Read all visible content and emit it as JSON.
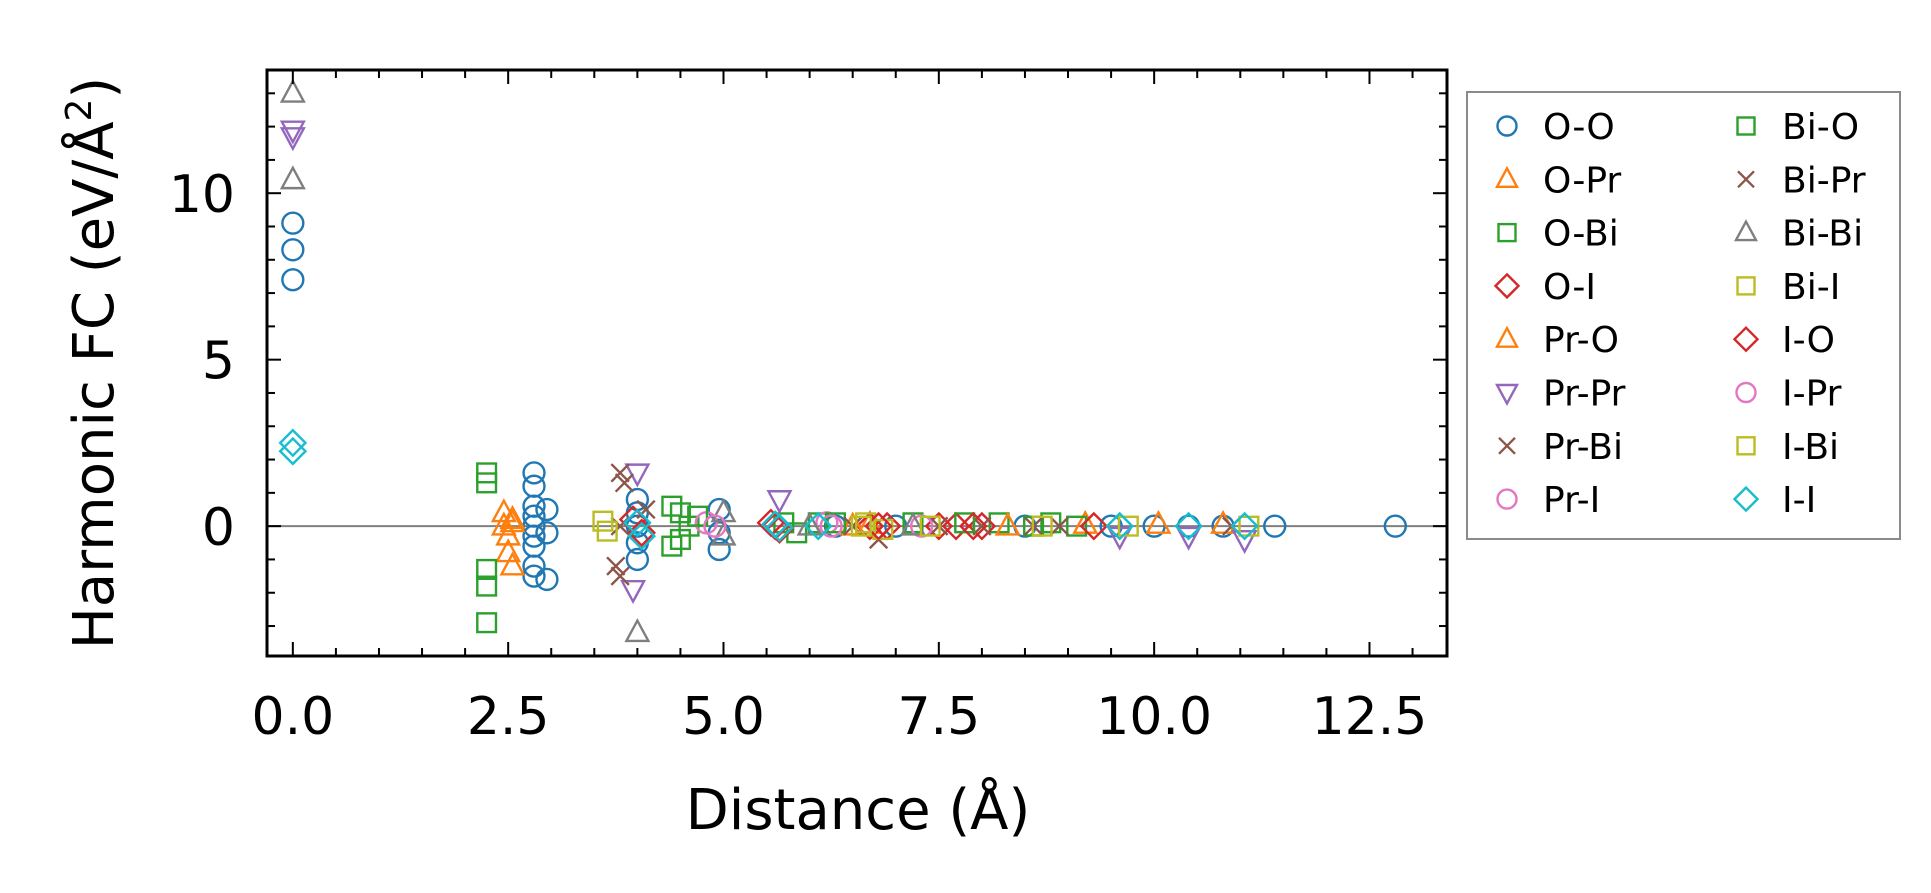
{
  "chart_data": {
    "type": "scatter",
    "title": "",
    "xlabel": "Distance (Å)",
    "ylabel": "Harmonic FC (eV/Å²)",
    "ylabel_main": "Harmonic FC (eV/Å",
    "ylabel_sup": "2",
    "ylabel_end": ")",
    "xlim": [
      -0.3,
      13.4
    ],
    "ylim": [
      -3.9,
      13.7
    ],
    "xticks": [
      0.0,
      2.5,
      5.0,
      7.5,
      10.0,
      12.5
    ],
    "xtick_labels": [
      "0.0",
      "2.5",
      "5.0",
      "7.5",
      "10.0",
      "12.5"
    ],
    "yticks": [
      0,
      5,
      10
    ],
    "ytick_labels": [
      "0",
      "5",
      "10"
    ],
    "reference_line_y": 0,
    "legend_position": "outside-right",
    "series": [
      {
        "name": "O-O",
        "marker": "circle",
        "color": "#1f77b4",
        "x": [
          0,
          0,
          0,
          2.8,
          2.8,
          2.8,
          2.8,
          2.8,
          2.8,
          2.8,
          2.8,
          2.8,
          2.95,
          2.95,
          2.95,
          4.0,
          4.0,
          4.0,
          4.0,
          4.0,
          4.95,
          4.95,
          4.95,
          6.3,
          7.0,
          8.5,
          9.5,
          10.0,
          10.4,
          10.8,
          11.4,
          12.8
        ],
        "y": [
          9.1,
          8.3,
          7.4,
          1.6,
          1.2,
          0.6,
          0.3,
          0.0,
          -0.3,
          -0.6,
          -1.2,
          -1.5,
          0.5,
          -0.2,
          -1.6,
          0.8,
          0.4,
          0.0,
          -0.5,
          -1.0,
          0.5,
          -0.2,
          -0.7,
          0.0,
          0.0,
          0.0,
          0.0,
          0.0,
          0.0,
          0.0,
          0.0,
          0.0
        ]
      },
      {
        "name": "O-Pr",
        "marker": "triangle-up",
        "color": "#ff7f0e",
        "x": [
          2.45,
          2.45,
          2.5,
          2.5,
          2.55,
          2.55,
          6.7,
          9.2,
          10.05,
          10.8
        ],
        "y": [
          0.4,
          0.0,
          -0.3,
          -0.8,
          -1.2,
          0.2,
          0.05,
          0.05,
          0.05,
          0.05
        ]
      },
      {
        "name": "O-Bi",
        "marker": "square",
        "color": "#2ca02c",
        "x": [
          2.25,
          2.25,
          2.25,
          2.25,
          2.25,
          4.4,
          4.5,
          4.6,
          4.5,
          4.4,
          5.7,
          5.85,
          6.1,
          7.2,
          8.2,
          8.8,
          9.1
        ],
        "y": [
          1.6,
          1.3,
          -1.3,
          -1.8,
          -2.9,
          0.6,
          0.4,
          0.0,
          -0.4,
          -0.6,
          0.1,
          -0.2,
          0.1,
          0.1,
          0.1,
          0.1,
          0.0
        ]
      },
      {
        "name": "O-I",
        "marker": "diamond",
        "color": "#d62728",
        "x": [
          3.95,
          4.05,
          5.55,
          5.65,
          6.7,
          6.9,
          7.5,
          7.7,
          8.0
        ],
        "y": [
          0.2,
          -0.2,
          0.1,
          -0.1,
          0.0,
          0.0,
          0.0,
          0.0,
          0.0
        ]
      },
      {
        "name": "Pr-O",
        "marker": "triangle-up",
        "color": "#ff7f0e",
        "x": [
          2.55,
          6.5,
          8.3
        ],
        "y": [
          0.1,
          0.0,
          0.0
        ]
      },
      {
        "name": "Pr-Pr",
        "marker": "triangle-down",
        "color": "#9467bd",
        "x": [
          0,
          0,
          4.0,
          3.95,
          5.65,
          9.6,
          10.4,
          11.05
        ],
        "y": [
          11.9,
          11.7,
          1.6,
          -1.9,
          0.8,
          -0.3,
          -0.3,
          -0.4
        ]
      },
      {
        "name": "Pr-Bi",
        "marker": "x",
        "color": "#8c564b",
        "x": [
          3.8,
          3.85,
          3.8,
          3.75,
          3.8,
          6.8,
          7.5,
          8.0,
          8.9,
          10.9
        ],
        "y": [
          1.6,
          1.3,
          0.0,
          -1.2,
          -1.5,
          -0.4,
          0.0,
          0.0,
          0.0,
          0.0
        ]
      },
      {
        "name": "Pr-I",
        "marker": "circle",
        "color": "#e377c2",
        "x": [
          4.8,
          6.2,
          7.3
        ],
        "y": [
          0.1,
          0.1,
          0.0
        ]
      },
      {
        "name": "Bi-O",
        "marker": "square",
        "color": "#2ca02c",
        "x": [
          4.7,
          6.3,
          7.8,
          8.6
        ],
        "y": [
          0.3,
          0.1,
          0.1,
          0.0
        ]
      },
      {
        "name": "Bi-Pr",
        "marker": "x",
        "color": "#8c564b",
        "x": [
          4.1,
          6.5,
          8.6
        ],
        "y": [
          0.5,
          0.0,
          0.0
        ]
      },
      {
        "name": "Bi-Bi",
        "marker": "triangle-up",
        "color": "#7f7f7f",
        "x": [
          0,
          0,
          4.0,
          5.0,
          5.0,
          6.0,
          7.2
        ],
        "y": [
          13.0,
          10.4,
          -3.2,
          0.4,
          -0.3,
          0.0,
          0.0
        ]
      },
      {
        "name": "Bi-I",
        "marker": "square",
        "color": "#bcbd22",
        "x": [
          3.6,
          3.65,
          6.65,
          6.85,
          8.7,
          9.7,
          11.1
        ],
        "y": [
          0.15,
          -0.15,
          0.1,
          -0.1,
          0.0,
          0.0,
          0.0
        ]
      },
      {
        "name": "I-O",
        "marker": "diamond",
        "color": "#d62728",
        "x": [
          5.6,
          6.8,
          7.9,
          9.3
        ],
        "y": [
          0.0,
          0.0,
          0.0,
          0.0
        ]
      },
      {
        "name": "I-Pr",
        "marker": "circle",
        "color": "#e377c2",
        "x": [
          4.9,
          6.25
        ],
        "y": [
          0.0,
          0.0
        ]
      },
      {
        "name": "I-Bi",
        "marker": "square",
        "color": "#bcbd22",
        "x": [
          6.6,
          7.4
        ],
        "y": [
          0.0,
          0.0
        ]
      },
      {
        "name": "I-I",
        "marker": "diamond",
        "color": "#17becf",
        "x": [
          0,
          0,
          4.0,
          4.05,
          5.6,
          5.65,
          6.1,
          9.6,
          10.4,
          11.05
        ],
        "y": [
          2.5,
          2.25,
          0.1,
          -0.3,
          0.05,
          -0.05,
          0.0,
          0.0,
          0.0,
          0.0
        ]
      }
    ]
  }
}
